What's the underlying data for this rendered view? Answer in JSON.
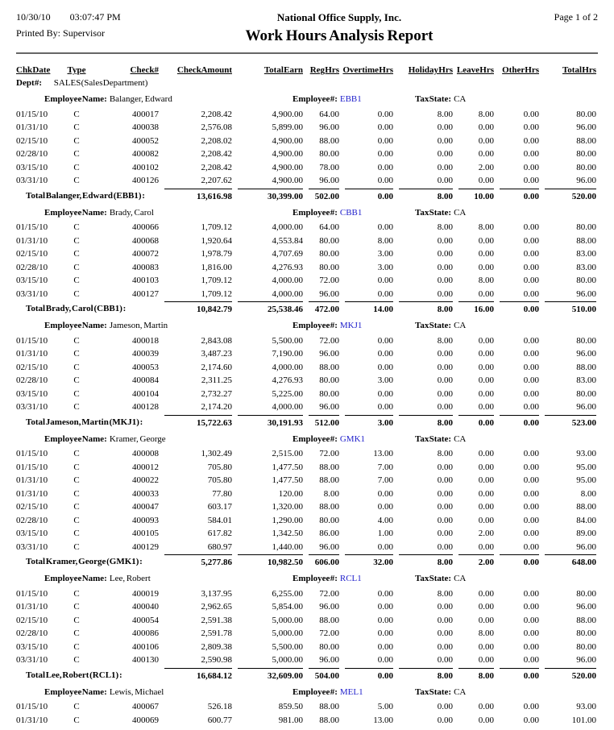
{
  "page": {
    "date": "10/30/10",
    "time": "03:07:47 PM",
    "printed_by_label": "Printed By:",
    "printed_by": "Supervisor",
    "company": "National Office Supply, Inc.",
    "page_label": "Page 1 of 2",
    "title": "Work Hours Analysis Report"
  },
  "colors": {
    "link_blue": "#2222CC",
    "rule_gray": "#666666"
  },
  "columns": [
    {
      "key": "chk-date",
      "label": "Chk Date",
      "align": "l"
    },
    {
      "key": "type",
      "label": "Type",
      "align": "c"
    },
    {
      "key": "check-num",
      "label": "Check#",
      "align": "r"
    },
    {
      "key": "check-amount",
      "label": "Check Amount",
      "align": "r"
    },
    {
      "key": "total-earn",
      "label": "Total Earn",
      "align": "r"
    },
    {
      "key": "reg-hrs",
      "label": "Reg Hrs",
      "align": "r"
    },
    {
      "key": "overtime-hrs",
      "label": "Overtime Hrs",
      "align": "r"
    },
    {
      "key": "holiday-hrs",
      "label": "Holiday Hrs",
      "align": "r"
    },
    {
      "key": "leave-hrs",
      "label": "Leave Hrs",
      "align": "r"
    },
    {
      "key": "other-hrs",
      "label": "Other Hrs",
      "align": "r"
    },
    {
      "key": "total-hrs",
      "label": "Total Hrs",
      "align": "r"
    }
  ],
  "dept": {
    "label": "Dept #:",
    "value": "SALES (Sales Department)"
  },
  "labels": {
    "employee_name": "Employee Name:",
    "employee_num": "Employee #:",
    "tax_state": "Tax State:"
  },
  "employees": [
    {
      "name": "Balanger, Edward",
      "number": "EBB1",
      "tax_state": "CA",
      "rows": [
        [
          "01/15/10",
          "C",
          "400017",
          "2,208.42",
          "4,900.00",
          "64.00",
          "0.00",
          "8.00",
          "8.00",
          "0.00",
          "80.00"
        ],
        [
          "01/31/10",
          "C",
          "400038",
          "2,576.08",
          "5,899.00",
          "96.00",
          "0.00",
          "0.00",
          "0.00",
          "0.00",
          "96.00"
        ],
        [
          "02/15/10",
          "C",
          "400052",
          "2,208.02",
          "4,900.00",
          "88.00",
          "0.00",
          "0.00",
          "0.00",
          "0.00",
          "88.00"
        ],
        [
          "02/28/10",
          "C",
          "400082",
          "2,208.42",
          "4,900.00",
          "80.00",
          "0.00",
          "0.00",
          "0.00",
          "0.00",
          "80.00"
        ],
        [
          "03/15/10",
          "C",
          "400102",
          "2,208.42",
          "4,900.00",
          "78.00",
          "0.00",
          "0.00",
          "2.00",
          "0.00",
          "80.00"
        ],
        [
          "03/31/10",
          "C",
          "400126",
          "2,207.62",
          "4,900.00",
          "96.00",
          "0.00",
          "0.00",
          "0.00",
          "0.00",
          "96.00"
        ]
      ],
      "total_label": "Total Balanger, Edward (EBB1) :",
      "totals": [
        "13,616.98",
        "30,399.00",
        "502.00",
        "0.00",
        "8.00",
        "10.00",
        "0.00",
        "520.00"
      ]
    },
    {
      "name": "Brady, Carol",
      "number": "CBB1",
      "tax_state": "CA",
      "rows": [
        [
          "01/15/10",
          "C",
          "400066",
          "1,709.12",
          "4,000.00",
          "64.00",
          "0.00",
          "8.00",
          "8.00",
          "0.00",
          "80.00"
        ],
        [
          "01/31/10",
          "C",
          "400068",
          "1,920.64",
          "4,553.84",
          "80.00",
          "8.00",
          "0.00",
          "0.00",
          "0.00",
          "88.00"
        ],
        [
          "02/15/10",
          "C",
          "400072",
          "1,978.79",
          "4,707.69",
          "80.00",
          "3.00",
          "0.00",
          "0.00",
          "0.00",
          "83.00"
        ],
        [
          "02/28/10",
          "C",
          "400083",
          "1,816.00",
          "4,276.93",
          "80.00",
          "3.00",
          "0.00",
          "0.00",
          "0.00",
          "83.00"
        ],
        [
          "03/15/10",
          "C",
          "400103",
          "1,709.12",
          "4,000.00",
          "72.00",
          "0.00",
          "0.00",
          "8.00",
          "0.00",
          "80.00"
        ],
        [
          "03/31/10",
          "C",
          "400127",
          "1,709.12",
          "4,000.00",
          "96.00",
          "0.00",
          "0.00",
          "0.00",
          "0.00",
          "96.00"
        ]
      ],
      "total_label": "Total Brady, Carol (CBB1) :",
      "totals": [
        "10,842.79",
        "25,538.46",
        "472.00",
        "14.00",
        "8.00",
        "16.00",
        "0.00",
        "510.00"
      ]
    },
    {
      "name": "Jameson, Martin",
      "number": "MKJ1",
      "tax_state": "CA",
      "rows": [
        [
          "01/15/10",
          "C",
          "400018",
          "2,843.08",
          "5,500.00",
          "72.00",
          "0.00",
          "8.00",
          "0.00",
          "0.00",
          "80.00"
        ],
        [
          "01/31/10",
          "C",
          "400039",
          "3,487.23",
          "7,190.00",
          "96.00",
          "0.00",
          "0.00",
          "0.00",
          "0.00",
          "96.00"
        ],
        [
          "02/15/10",
          "C",
          "400053",
          "2,174.60",
          "4,000.00",
          "88.00",
          "0.00",
          "0.00",
          "0.00",
          "0.00",
          "88.00"
        ],
        [
          "02/28/10",
          "C",
          "400084",
          "2,311.25",
          "4,276.93",
          "80.00",
          "3.00",
          "0.00",
          "0.00",
          "0.00",
          "83.00"
        ],
        [
          "03/15/10",
          "C",
          "400104",
          "2,732.27",
          "5,225.00",
          "80.00",
          "0.00",
          "0.00",
          "0.00",
          "0.00",
          "80.00"
        ],
        [
          "03/31/10",
          "C",
          "400128",
          "2,174.20",
          "4,000.00",
          "96.00",
          "0.00",
          "0.00",
          "0.00",
          "0.00",
          "96.00"
        ]
      ],
      "total_label": "Total Jameson, Martin (MKJ1) :",
      "totals": [
        "15,722.63",
        "30,191.93",
        "512.00",
        "3.00",
        "8.00",
        "0.00",
        "0.00",
        "523.00"
      ]
    },
    {
      "name": "Kramer, George",
      "number": "GMK1",
      "tax_state": "CA",
      "rows": [
        [
          "01/15/10",
          "C",
          "400008",
          "1,302.49",
          "2,515.00",
          "72.00",
          "13.00",
          "8.00",
          "0.00",
          "0.00",
          "93.00"
        ],
        [
          "01/15/10",
          "C",
          "400012",
          "705.80",
          "1,477.50",
          "88.00",
          "7.00",
          "0.00",
          "0.00",
          "0.00",
          "95.00"
        ],
        [
          "01/31/10",
          "C",
          "400022",
          "705.80",
          "1,477.50",
          "88.00",
          "7.00",
          "0.00",
          "0.00",
          "0.00",
          "95.00"
        ],
        [
          "01/31/10",
          "C",
          "400033",
          "77.80",
          "120.00",
          "8.00",
          "0.00",
          "0.00",
          "0.00",
          "0.00",
          "8.00"
        ],
        [
          "02/15/10",
          "C",
          "400047",
          "603.17",
          "1,320.00",
          "88.00",
          "0.00",
          "0.00",
          "0.00",
          "0.00",
          "88.00"
        ],
        [
          "02/28/10",
          "C",
          "400093",
          "584.01",
          "1,290.00",
          "80.00",
          "4.00",
          "0.00",
          "0.00",
          "0.00",
          "84.00"
        ],
        [
          "03/15/10",
          "C",
          "400105",
          "617.82",
          "1,342.50",
          "86.00",
          "1.00",
          "0.00",
          "2.00",
          "0.00",
          "89.00"
        ],
        [
          "03/31/10",
          "C",
          "400129",
          "680.97",
          "1,440.00",
          "96.00",
          "0.00",
          "0.00",
          "0.00",
          "0.00",
          "96.00"
        ]
      ],
      "total_label": "Total Kramer, George (GMK1) :",
      "totals": [
        "5,277.86",
        "10,982.50",
        "606.00",
        "32.00",
        "8.00",
        "2.00",
        "0.00",
        "648.00"
      ]
    },
    {
      "name": "Lee, Robert",
      "number": "RCL1",
      "tax_state": "CA",
      "rows": [
        [
          "01/15/10",
          "C",
          "400019",
          "3,137.95",
          "6,255.00",
          "72.00",
          "0.00",
          "8.00",
          "0.00",
          "0.00",
          "80.00"
        ],
        [
          "01/31/10",
          "C",
          "400040",
          "2,962.65",
          "5,854.00",
          "96.00",
          "0.00",
          "0.00",
          "0.00",
          "0.00",
          "96.00"
        ],
        [
          "02/15/10",
          "C",
          "400054",
          "2,591.38",
          "5,000.00",
          "88.00",
          "0.00",
          "0.00",
          "0.00",
          "0.00",
          "88.00"
        ],
        [
          "02/28/10",
          "C",
          "400086",
          "2,591.78",
          "5,000.00",
          "72.00",
          "0.00",
          "0.00",
          "8.00",
          "0.00",
          "80.00"
        ],
        [
          "03/15/10",
          "C",
          "400106",
          "2,809.38",
          "5,500.00",
          "80.00",
          "0.00",
          "0.00",
          "0.00",
          "0.00",
          "80.00"
        ],
        [
          "03/31/10",
          "C",
          "400130",
          "2,590.98",
          "5,000.00",
          "96.00",
          "0.00",
          "0.00",
          "0.00",
          "0.00",
          "96.00"
        ]
      ],
      "total_label": "Total Lee, Robert (RCL1) :",
      "totals": [
        "16,684.12",
        "32,609.00",
        "504.00",
        "0.00",
        "8.00",
        "8.00",
        "0.00",
        "520.00"
      ]
    },
    {
      "name": "Lewis, Michael",
      "number": "MEL1",
      "tax_state": "CA",
      "rows": [
        [
          "01/15/10",
          "C",
          "400067",
          "526.18",
          "859.50",
          "88.00",
          "5.00",
          "0.00",
          "0.00",
          "0.00",
          "93.00"
        ],
        [
          "01/31/10",
          "C",
          "400069",
          "600.77",
          "981.00",
          "88.00",
          "13.00",
          "0.00",
          "0.00",
          "0.00",
          "101.00"
        ]
      ],
      "total_label": null,
      "totals": null
    }
  ]
}
